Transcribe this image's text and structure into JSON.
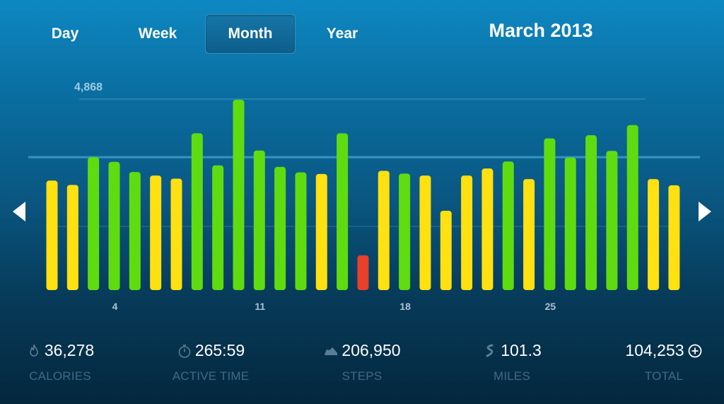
{
  "tabs": [
    {
      "label": "Day",
      "active": false
    },
    {
      "label": "Week",
      "active": false
    },
    {
      "label": "Month",
      "active": true
    },
    {
      "label": "Year",
      "active": false
    }
  ],
  "period_title": "March 2013",
  "nav": {
    "prev_icon": "chevron-left-icon",
    "next_icon": "chevron-right-icon"
  },
  "colors": {
    "bar_goal_met": "#5fdc10",
    "bar_near_goal": "#ffe010",
    "bar_low": "#e8402a",
    "max_line": "#4aa6d0",
    "goal_line": "#56c2ee"
  },
  "chart_data": {
    "type": "bar",
    "max_value_label": "4,868",
    "max_value": 4868,
    "goal_value": 3400,
    "ylim": [
      0,
      4868
    ],
    "x_tick_labels": [
      {
        "day": 4,
        "label": "4"
      },
      {
        "day": 11,
        "label": "11"
      },
      {
        "day": 18,
        "label": "18"
      },
      {
        "day": 25,
        "label": "25"
      }
    ],
    "days": [
      1,
      2,
      3,
      4,
      5,
      6,
      7,
      8,
      9,
      10,
      11,
      12,
      13,
      14,
      15,
      16,
      17,
      18,
      19,
      20,
      21,
      22,
      23,
      24,
      25,
      26,
      27,
      28,
      29,
      30,
      31
    ],
    "values": [
      2800,
      2690,
      3400,
      3280,
      3020,
      2930,
      2850,
      4010,
      3190,
      4868,
      3570,
      3150,
      3010,
      2970,
      4010,
      890,
      3050,
      2980,
      2930,
      2030,
      2930,
      3110,
      3290,
      2840,
      3880,
      3390,
      3960,
      3560,
      4220,
      2840,
      2680
    ],
    "status": [
      "near",
      "near",
      "met",
      "met",
      "met",
      "near",
      "near",
      "met",
      "met",
      "met",
      "met",
      "met",
      "met",
      "near",
      "met",
      "low",
      "near",
      "met",
      "near",
      "near",
      "near",
      "near",
      "met",
      "near",
      "met",
      "met",
      "met",
      "met",
      "met",
      "near",
      "near"
    ]
  },
  "stats": [
    {
      "icon": "flame-icon",
      "value": "36,278",
      "label": "CALORIES"
    },
    {
      "icon": "stopwatch-icon",
      "value": "265:59",
      "label": "ACTIVE TIME"
    },
    {
      "icon": "shoe-icon",
      "value": "206,950",
      "label": "STEPS"
    },
    {
      "icon": "route-icon",
      "value": "101.3",
      "label": "MILES"
    },
    {
      "icon": "add-circle-icon",
      "value": "104,253",
      "label": "TOTAL"
    }
  ]
}
